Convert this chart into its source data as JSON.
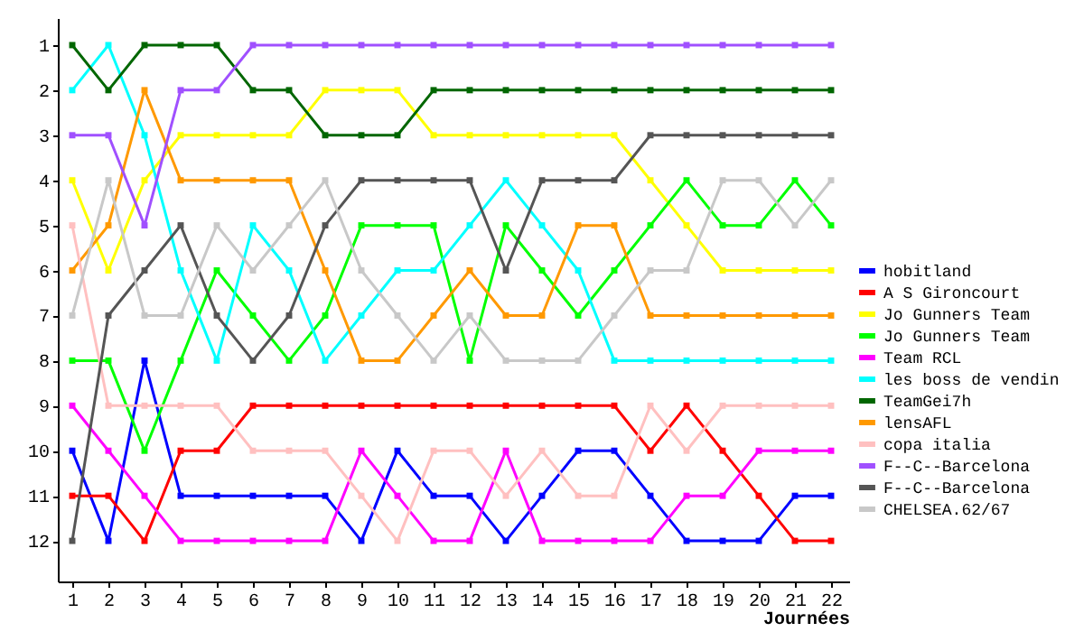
{
  "chart_data": {
    "type": "line",
    "xlabel": "Journées",
    "x": [
      1,
      2,
      3,
      4,
      5,
      6,
      7,
      8,
      9,
      10,
      11,
      12,
      13,
      14,
      15,
      16,
      17,
      18,
      19,
      20,
      21,
      22
    ],
    "xlim": [
      0.6,
      22.5
    ],
    "xticks": [
      1,
      2,
      3,
      4,
      5,
      6,
      7,
      8,
      9,
      10,
      11,
      12,
      13,
      14,
      15,
      16,
      17,
      18,
      19,
      20,
      21,
      22
    ],
    "ylim": [
      12.9,
      0.4
    ],
    "yticks": [
      1,
      2,
      3,
      4,
      5,
      6,
      7,
      8,
      9,
      10,
      11,
      12
    ],
    "marker": "square",
    "line_style": "solid",
    "grid": false,
    "legend": "right",
    "series": [
      {
        "name": "hobitland",
        "color": "#0000ff",
        "values": [
          10,
          12,
          8,
          11,
          11,
          11,
          11,
          11,
          12,
          10,
          11,
          11,
          12,
          11,
          10,
          10,
          11,
          12,
          12,
          12,
          11,
          11
        ]
      },
      {
        "name": "A S Gironcourt",
        "color": "#ff0000",
        "values": [
          11,
          11,
          12,
          10,
          10,
          9,
          9,
          9,
          9,
          9,
          9,
          9,
          9,
          9,
          9,
          9,
          10,
          9,
          10,
          11,
          12,
          12
        ]
      },
      {
        "name": "Jo Gunners Team",
        "color": "#ffff00",
        "values": [
          4,
          6,
          4,
          3,
          3,
          3,
          3,
          2,
          2,
          2,
          3,
          3,
          3,
          3,
          3,
          3,
          4,
          5,
          6,
          6,
          6,
          6
        ]
      },
      {
        "name": "Jo Gunners Team",
        "color": "#00ff00",
        "values": [
          8,
          8,
          10,
          8,
          6,
          7,
          8,
          7,
          5,
          5,
          5,
          8,
          5,
          6,
          7,
          6,
          5,
          4,
          5,
          5,
          4,
          5
        ]
      },
      {
        "name": "Team RCL",
        "color": "#ff00ff",
        "values": [
          9,
          10,
          11,
          12,
          12,
          12,
          12,
          12,
          10,
          11,
          12,
          12,
          10,
          12,
          12,
          12,
          12,
          11,
          11,
          10,
          10,
          10
        ]
      },
      {
        "name": "les boss de vendin",
        "color": "#00ffff",
        "values": [
          2,
          1,
          3,
          6,
          8,
          5,
          6,
          8,
          7,
          6,
          6,
          5,
          4,
          5,
          6,
          8,
          8,
          8,
          8,
          8,
          8,
          8
        ]
      },
      {
        "name": "TeamGei7h",
        "color": "#006600",
        "values": [
          1,
          2,
          1,
          1,
          1,
          2,
          2,
          3,
          3,
          3,
          2,
          2,
          2,
          2,
          2,
          2,
          2,
          2,
          2,
          2,
          2,
          2
        ]
      },
      {
        "name": "lensAFL",
        "color": "#ff9900",
        "values": [
          6,
          5,
          2,
          4,
          4,
          4,
          4,
          6,
          8,
          8,
          7,
          6,
          7,
          7,
          5,
          5,
          7,
          7,
          7,
          7,
          7,
          7
        ]
      },
      {
        "name": "copa italia",
        "color": "#ffc0c0",
        "values": [
          5,
          9,
          9,
          9,
          9,
          10,
          10,
          10,
          11,
          12,
          10,
          10,
          11,
          10,
          11,
          11,
          9,
          10,
          9,
          9,
          9,
          9
        ]
      },
      {
        "name": "F--C--Barcelona",
        "color": "#a050ff",
        "values": [
          3,
          3,
          5,
          2,
          2,
          1,
          1,
          1,
          1,
          1,
          1,
          1,
          1,
          1,
          1,
          1,
          1,
          1,
          1,
          1,
          1,
          1
        ]
      },
      {
        "name": "F--C--Barcelona",
        "color": "#555555",
        "values": [
          12,
          7,
          6,
          5,
          7,
          8,
          7,
          5,
          4,
          4,
          4,
          4,
          6,
          4,
          4,
          4,
          3,
          3,
          3,
          3,
          3,
          3
        ]
      },
      {
        "name": "CHELSEA.62/67",
        "color": "#c8c8c8",
        "values": [
          7,
          4,
          7,
          7,
          5,
          6,
          5,
          4,
          6,
          7,
          8,
          7,
          8,
          8,
          8,
          7,
          6,
          6,
          4,
          4,
          5,
          4
        ]
      }
    ]
  }
}
